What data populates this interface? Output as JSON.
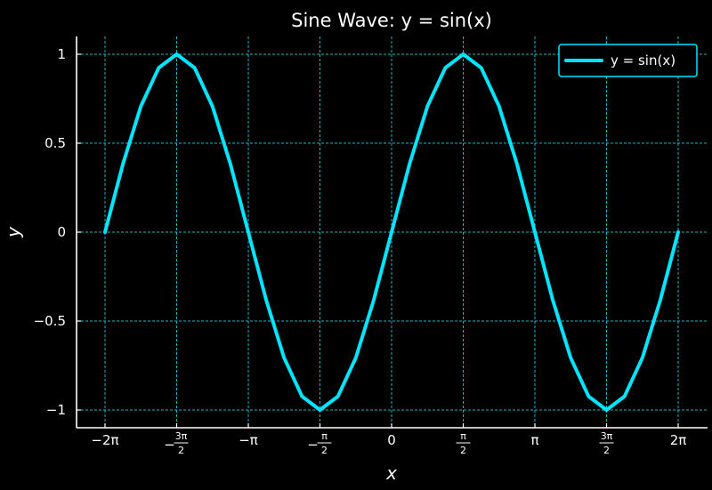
{
  "chart_data": {
    "type": "line",
    "title": "Sine Wave: y = sin(x)",
    "xlabel": "x",
    "ylabel": "y",
    "xlim": [
      -6.2832,
      6.2832
    ],
    "ylim": [
      -1.1,
      1.1
    ],
    "grid": true,
    "legend_position": "top-right",
    "x_ticks": [
      {
        "value": -6.2832,
        "label": "−2π"
      },
      {
        "value": -4.7124,
        "sign": "−",
        "num": "3π",
        "den": "2"
      },
      {
        "value": -3.1416,
        "label": "−π"
      },
      {
        "value": -1.5708,
        "sign": "−",
        "num": "π",
        "den": "2"
      },
      {
        "value": 0,
        "label": "0"
      },
      {
        "value": 1.5708,
        "sign": "",
        "num": "π",
        "den": "2"
      },
      {
        "value": 3.1416,
        "label": "π"
      },
      {
        "value": 4.7124,
        "sign": "",
        "num": "3π",
        "den": "2"
      },
      {
        "value": 6.2832,
        "label": "2π"
      }
    ],
    "y_ticks": [
      {
        "value": 1,
        "label": "1"
      },
      {
        "value": 0.5,
        "label": "0.5"
      },
      {
        "value": 0,
        "label": "0"
      },
      {
        "value": -0.5,
        "label": "−0.5"
      },
      {
        "value": -1,
        "label": "−1"
      }
    ],
    "series": [
      {
        "name": "y = sin(x)",
        "color": "#00e5ff",
        "x": [
          -6.2832,
          -5.8905,
          -5.4978,
          -5.1051,
          -4.7124,
          -4.3197,
          -3.927,
          -3.5343,
          -3.1416,
          -2.7489,
          -2.3562,
          -1.9635,
          -1.5708,
          -1.1781,
          -0.7854,
          -0.3927,
          0,
          0.3927,
          0.7854,
          1.1781,
          1.5708,
          1.9635,
          2.3562,
          2.7489,
          3.1416,
          3.5343,
          3.927,
          4.3197,
          4.7124,
          5.1051,
          5.4978,
          5.8905,
          6.2832
        ],
        "y": [
          0,
          0.3827,
          0.7071,
          0.9239,
          1,
          0.9239,
          0.7071,
          0.3827,
          0,
          -0.3827,
          -0.7071,
          -0.9239,
          -1,
          -0.9239,
          -0.7071,
          -0.3827,
          0,
          0.3827,
          0.7071,
          0.9239,
          1,
          0.9239,
          0.7071,
          0.3827,
          0,
          -0.3827,
          -0.7071,
          -0.9239,
          -1,
          -0.9239,
          -0.7071,
          -0.3827,
          0
        ]
      }
    ]
  }
}
